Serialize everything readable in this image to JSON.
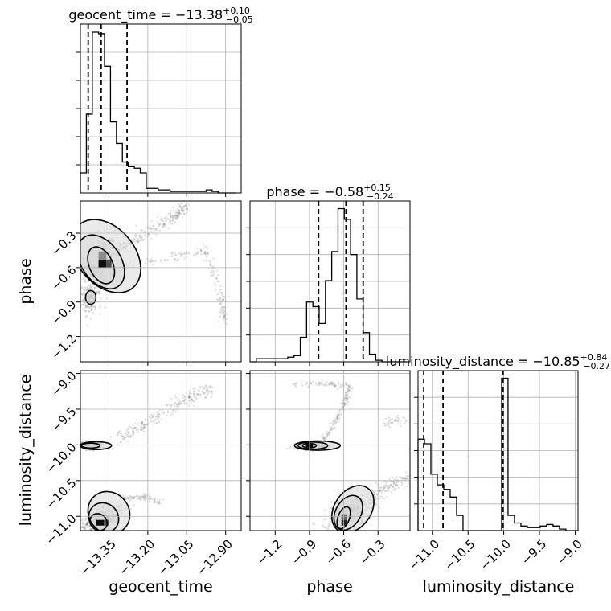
{
  "chart_data": {
    "type": "corner",
    "parameters": [
      "geocent_time",
      "phase",
      "luminosity_distance"
    ],
    "ranges": {
      "geocent_time": [
        -13.46,
        -12.84
      ],
      "phase": [
        -1.42,
        -0.02
      ],
      "luminosity_distance": [
        -11.2,
        -8.96
      ]
    },
    "ticks": {
      "geocent_time": [
        -13.35,
        -13.2,
        -13.05,
        -12.9
      ],
      "phase": [
        -1.2,
        -0.9,
        -0.6,
        -0.3
      ],
      "luminosity_distance": [
        -11.0,
        -10.5,
        -10.0,
        -9.5,
        -9.0
      ]
    },
    "tick_labels": {
      "geocent_time": [
        "−13.35",
        "−13.20",
        "−13.05",
        "−12.90"
      ],
      "phase": [
        "−1.2",
        "−0.9",
        "−0.6",
        "−0.3"
      ],
      "luminosity_distance": [
        "−11.0",
        "−10.5",
        "−10.0",
        "−9.5",
        "−9.0"
      ]
    },
    "titles": [
      {
        "param": "geocent_time",
        "text": "geocent_time = −13.38",
        "sup": "+0.10",
        "sub": "−0.05"
      },
      {
        "param": "phase",
        "text": "phase = −0.58",
        "sup": "+0.15",
        "sub": "−0.24"
      },
      {
        "param": "luminosity_distance",
        "text": "luminosity_distance = −10.85",
        "sup": "+0.84",
        "sub": "−0.27"
      }
    ],
    "quantiles": {
      "geocent_time": [
        -13.43,
        -13.38,
        -13.28
      ],
      "phase": [
        -0.82,
        -0.58,
        -0.43
      ],
      "luminosity_distance": [
        -11.12,
        -10.85,
        -10.01
      ]
    },
    "histograms": {
      "geocent_time": {
        "edges": [
          -13.46,
          -13.437,
          -13.414,
          -13.39,
          -13.367,
          -13.344,
          -13.321,
          -13.298,
          -13.275,
          -13.252,
          -13.229,
          -13.206,
          -13.183,
          -13.16,
          -13.137,
          -13.114,
          -13.09,
          -13.067,
          -13.044,
          -13.021,
          -12.998,
          -12.975,
          -12.952,
          -12.929,
          -12.906,
          -12.883,
          -12.86
        ],
        "counts": [
          0.13,
          0.51,
          1.04,
          1.03,
          0.82,
          0.46,
          0.32,
          0.2,
          0.17,
          0.16,
          0.13,
          0.03,
          0.03,
          0.02,
          0.02,
          0.01,
          0.01,
          0.01,
          0.01,
          0.01,
          0.01,
          0.02,
          0.01,
          0.0,
          0.0,
          0.0
        ]
      },
      "phase": {
        "edges": [
          -1.42,
          -1.365,
          -1.31,
          -1.255,
          -1.2,
          -1.145,
          -1.09,
          -1.035,
          -0.98,
          -0.925,
          -0.87,
          -0.815,
          -0.76,
          -0.705,
          -0.65,
          -0.595,
          -0.54,
          -0.485,
          -0.43,
          -0.375,
          -0.32,
          -0.265,
          -0.21,
          -0.155,
          -0.1,
          -0.045
        ],
        "counts": [
          0.0,
          0.02,
          0.02,
          0.02,
          0.02,
          0.02,
          0.03,
          0.04,
          0.16,
          0.39,
          0.36,
          0.25,
          0.53,
          0.72,
          1.0,
          0.93,
          0.7,
          0.41,
          0.19,
          0.05,
          0.01,
          0.0,
          0.0,
          0.0,
          0.0
        ]
      },
      "luminosity_distance": {
        "edges": [
          -11.2,
          -11.11,
          -11.02,
          -10.93,
          -10.84,
          -10.75,
          -10.66,
          -10.57,
          -10.48,
          -10.39,
          -10.3,
          -10.21,
          -10.12,
          -10.03,
          -9.94,
          -9.85,
          -9.76,
          -9.67,
          -9.58,
          -9.49,
          -9.4,
          -9.31,
          -9.22,
          -9.13,
          -9.04,
          -8.95
        ],
        "counts": [
          0.6,
          0.57,
          0.37,
          0.3,
          0.27,
          0.22,
          0.1,
          0.0,
          0.0,
          0.0,
          0.0,
          0.0,
          0.0,
          1.0,
          0.1,
          0.05,
          0.03,
          0.02,
          0.02,
          0.03,
          0.04,
          0.03,
          0.01,
          0.0,
          0.0
        ]
      }
    },
    "pairs": [
      {
        "x": "geocent_time",
        "y": "phase",
        "clusters": [
          {
            "cx": -13.385,
            "cy": -0.57,
            "sx": 0.03,
            "sy": 0.12,
            "n": 400,
            "corr": 0.3
          },
          {
            "cx": -13.42,
            "cy": -0.88,
            "sx": 0.02,
            "sy": 0.06,
            "n": 150,
            "corr": 0.0
          }
        ],
        "curves": [
          {
            "points": [
              [
                -13.32,
                -0.45
              ],
              [
                -13.2,
                -0.3
              ],
              [
                -13.1,
                -0.15
              ],
              [
                -13.05,
                -0.08
              ]
            ],
            "n": 220,
            "spread": 0.04
          },
          {
            "points": [
              [
                -13.3,
                -0.6
              ],
              [
                -13.1,
                -0.5
              ],
              [
                -12.98,
                -0.45
              ],
              [
                -12.92,
                -0.8
              ],
              [
                -12.9,
                -1.1
              ]
            ],
            "n": 180,
            "spread": 0.03
          }
        ],
        "contours": [
          {
            "cx": -13.38,
            "cy": -0.58,
            "rx": 0.045,
            "ry": 0.17,
            "rot": -25
          },
          {
            "cx": -13.38,
            "cy": -0.55,
            "rx": 0.075,
            "ry": 0.26,
            "rot": -35
          },
          {
            "cx": -13.36,
            "cy": -0.5,
            "rx": 0.11,
            "ry": 0.36,
            "rot": -40
          },
          {
            "cx": -13.42,
            "cy": -0.86,
            "rx": 0.02,
            "ry": 0.06,
            "rot": 0
          }
        ],
        "density_cells": [
          {
            "x": -13.39,
            "y": -0.6,
            "w": 0.03,
            "h": 0.07,
            "v": 0.95
          },
          {
            "x": -13.36,
            "y": -0.6,
            "w": 0.02,
            "h": 0.07,
            "v": 0.7
          },
          {
            "x": -13.39,
            "y": -0.53,
            "w": 0.03,
            "h": 0.07,
            "v": 0.45
          }
        ]
      },
      {
        "x": "geocent_time",
        "y": "luminosity_distance",
        "clusters": [
          {
            "cx": -13.42,
            "cy": -10.01,
            "sx": 0.03,
            "sy": 0.03,
            "n": 150,
            "corr": 0.0
          },
          {
            "cx": -13.38,
            "cy": -11.05,
            "sx": 0.04,
            "sy": 0.09,
            "n": 350,
            "corr": 0.6
          }
        ],
        "curves": [
          {
            "points": [
              [
                -13.33,
                -9.95
              ],
              [
                -13.2,
                -9.7
              ],
              [
                -13.05,
                -9.35
              ],
              [
                -12.95,
                -9.2
              ]
            ],
            "n": 240,
            "spread": 0.04
          },
          {
            "points": [
              [
                -13.3,
                -10.75
              ],
              [
                -13.22,
                -10.72
              ],
              [
                -13.15,
                -10.8
              ]
            ],
            "n": 80,
            "spread": 0.02
          }
        ],
        "contours": [
          {
            "cx": -13.42,
            "cy": -10.01,
            "rx": 0.035,
            "ry": 0.035,
            "rot": 0
          },
          {
            "cx": -13.4,
            "cy": -10.01,
            "rx": 0.06,
            "ry": 0.055,
            "rot": 0
          },
          {
            "cx": -13.39,
            "cy": -11.08,
            "rx": 0.035,
            "ry": 0.11,
            "rot": 40
          },
          {
            "cx": -13.37,
            "cy": -11.02,
            "rx": 0.06,
            "ry": 0.2,
            "rot": 45
          },
          {
            "cx": -13.35,
            "cy": -10.95,
            "rx": 0.085,
            "ry": 0.28,
            "rot": 48
          }
        ],
        "density_cells": [
          {
            "x": -13.4,
            "y": -11.13,
            "w": 0.03,
            "h": 0.08,
            "v": 0.95
          },
          {
            "x": -13.37,
            "y": -11.13,
            "w": 0.02,
            "h": 0.08,
            "v": 0.7
          }
        ]
      },
      {
        "x": "phase",
        "y": "luminosity_distance",
        "clusters": [
          {
            "cx": -0.88,
            "cy": -10.01,
            "sx": 0.08,
            "sy": 0.025,
            "n": 200,
            "corr": 0.0
          },
          {
            "cx": -0.55,
            "cy": -10.95,
            "sx": 0.1,
            "sy": 0.12,
            "n": 350,
            "corr": 0.5
          }
        ],
        "curves": [
          {
            "points": [
              [
                -1.05,
                -9.15
              ],
              [
                -0.75,
                -9.15
              ],
              [
                -0.55,
                -9.18
              ],
              [
                -0.6,
                -9.45
              ],
              [
                -0.7,
                -9.75
              ],
              [
                -0.8,
                -9.98
              ]
            ],
            "n": 200,
            "spread": 0.02
          },
          {
            "points": [
              [
                -0.35,
                -10.7
              ],
              [
                -0.2,
                -10.6
              ],
              [
                -0.05,
                -10.45
              ]
            ],
            "n": 120,
            "spread": 0.04
          },
          {
            "points": [
              [
                -0.25,
                -9.7
              ],
              [
                -0.05,
                -9.65
              ]
            ],
            "n": 40,
            "spread": 0.03
          }
        ],
        "contours": [
          {
            "cx": -0.9,
            "cy": -10.01,
            "rx": 0.06,
            "ry": 0.03,
            "rot": 0
          },
          {
            "cx": -0.87,
            "cy": -10.01,
            "rx": 0.13,
            "ry": 0.05,
            "rot": 0
          },
          {
            "cx": -0.83,
            "cy": -10.01,
            "rx": 0.2,
            "ry": 0.065,
            "rot": 0
          },
          {
            "cx": -0.6,
            "cy": -11.02,
            "rx": 0.05,
            "ry": 0.16,
            "rot": 20
          },
          {
            "cx": -0.56,
            "cy": -10.95,
            "rx": 0.11,
            "ry": 0.26,
            "rot": 30
          },
          {
            "cx": -0.52,
            "cy": -10.9,
            "rx": 0.16,
            "ry": 0.36,
            "rot": 35
          }
        ],
        "density_cells": [
          {
            "x": -0.93,
            "y": -10.03,
            "w": 0.06,
            "h": 0.04,
            "v": 0.95
          },
          {
            "x": -0.62,
            "y": -11.13,
            "w": 0.05,
            "h": 0.08,
            "v": 0.85
          },
          {
            "x": -0.62,
            "y": -11.05,
            "w": 0.05,
            "h": 0.08,
            "v": 0.6
          }
        ]
      }
    ],
    "grid": true
  }
}
